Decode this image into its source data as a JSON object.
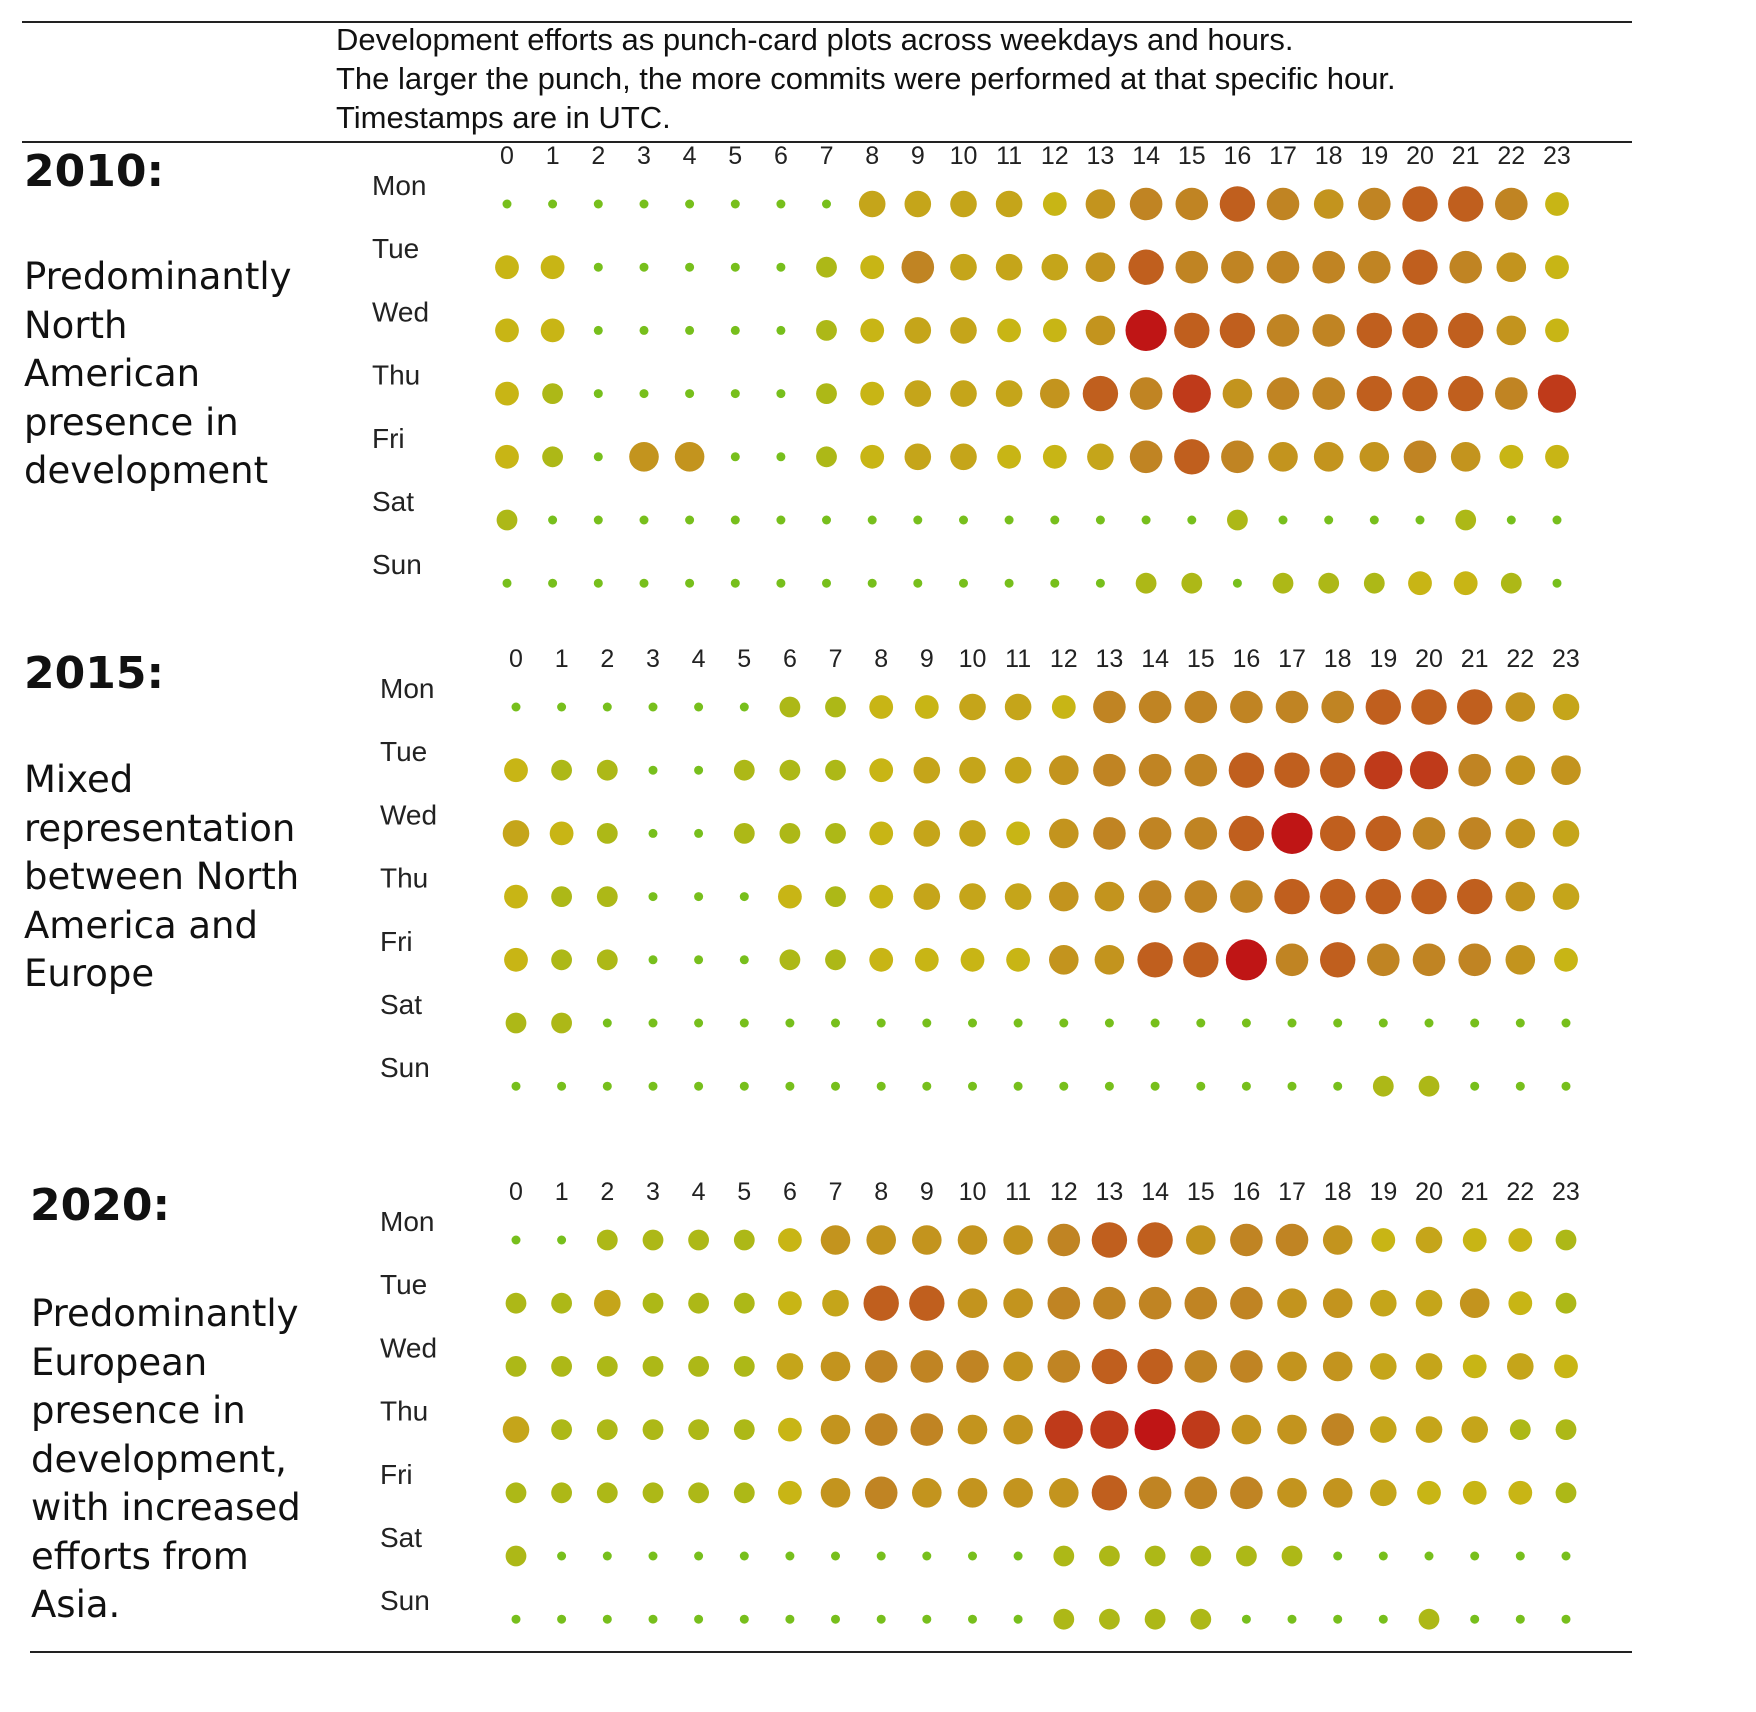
{
  "caption": {
    "lines": [
      "Development efforts as punch-card plots across weekdays and hours.",
      "The larger the punch, the more commits were performed at that specific hour.",
      "Timestamps are in UTC."
    ]
  },
  "palette": {
    "low": "#5cc21e",
    "mid": "#c8b515",
    "high": "#c08423",
    "top": "#bf1515"
  },
  "chart_data": [
    {
      "type": "punchcard",
      "title": "2010:",
      "description": [
        "Predominantly",
        "North",
        "American",
        "presence in",
        "development"
      ],
      "x": [
        "0",
        "1",
        "2",
        "3",
        "4",
        "5",
        "6",
        "7",
        "8",
        "9",
        "10",
        "11",
        "12",
        "13",
        "14",
        "15",
        "16",
        "17",
        "18",
        "19",
        "20",
        "21",
        "22",
        "23"
      ],
      "y": [
        "Mon",
        "Tue",
        "Wed",
        "Thu",
        "Fri",
        "Sat",
        "Sun"
      ],
      "scale": "relative commit intensity 0-10 (punch size and color)",
      "values": [
        [
          1,
          1,
          1,
          1,
          1,
          1,
          1,
          1,
          5,
          5,
          5,
          5,
          4,
          6,
          7,
          7,
          8,
          7,
          6,
          7,
          8,
          8,
          7,
          4
        ],
        [
          4,
          4,
          1,
          1,
          1,
          1,
          1,
          3,
          4,
          7,
          5,
          5,
          5,
          6,
          8,
          7,
          7,
          7,
          7,
          7,
          8,
          7,
          6,
          4
        ],
        [
          4,
          4,
          1,
          1,
          1,
          1,
          1,
          3,
          4,
          5,
          5,
          4,
          4,
          6,
          10,
          8,
          8,
          7,
          7,
          8,
          8,
          8,
          6,
          4
        ],
        [
          4,
          3,
          1,
          1,
          1,
          1,
          1,
          3,
          4,
          5,
          5,
          5,
          6,
          8,
          7,
          9,
          6,
          7,
          7,
          8,
          8,
          8,
          7,
          9
        ],
        [
          4,
          3,
          1,
          6,
          6,
          1,
          1,
          3,
          4,
          5,
          5,
          4,
          4,
          5,
          7,
          8,
          7,
          6,
          6,
          6,
          7,
          6,
          4,
          4
        ],
        [
          3,
          1,
          1,
          1,
          1,
          1,
          1,
          1,
          1,
          1,
          1,
          1,
          1,
          1,
          1,
          1,
          3,
          1,
          1,
          1,
          1,
          3,
          1,
          1
        ],
        [
          1,
          1,
          1,
          1,
          1,
          1,
          1,
          1,
          1,
          1,
          1,
          1,
          1,
          1,
          3,
          3,
          1,
          3,
          3,
          3,
          4,
          4,
          3,
          1
        ]
      ]
    },
    {
      "type": "punchcard",
      "title": "2015:",
      "description": [
        "Mixed",
        "representation",
        "between North",
        "America and",
        "Europe"
      ],
      "x": [
        "0",
        "1",
        "2",
        "3",
        "4",
        "5",
        "6",
        "7",
        "8",
        "9",
        "10",
        "11",
        "12",
        "13",
        "14",
        "15",
        "16",
        "17",
        "18",
        "19",
        "20",
        "21",
        "22",
        "23"
      ],
      "y": [
        "Mon",
        "Tue",
        "Wed",
        "Thu",
        "Fri",
        "Sat",
        "Sun"
      ],
      "scale": "relative commit intensity 0-10 (punch size and color)",
      "values": [
        [
          1,
          1,
          1,
          1,
          1,
          1,
          3,
          3,
          4,
          4,
          5,
          5,
          4,
          7,
          7,
          7,
          7,
          7,
          7,
          8,
          8,
          8,
          6,
          5
        ],
        [
          4,
          3,
          3,
          1,
          1,
          3,
          3,
          3,
          4,
          5,
          5,
          5,
          6,
          7,
          7,
          7,
          8,
          8,
          8,
          9,
          9,
          7,
          6,
          6
        ],
        [
          5,
          4,
          3,
          1,
          1,
          3,
          3,
          3,
          4,
          5,
          5,
          4,
          6,
          7,
          7,
          7,
          8,
          10,
          8,
          8,
          7,
          7,
          6,
          5
        ],
        [
          4,
          3,
          3,
          1,
          1,
          1,
          4,
          3,
          4,
          5,
          5,
          5,
          6,
          6,
          7,
          7,
          7,
          8,
          8,
          8,
          8,
          8,
          6,
          5
        ],
        [
          4,
          3,
          3,
          1,
          1,
          1,
          3,
          3,
          4,
          4,
          4,
          4,
          6,
          6,
          8,
          8,
          10,
          7,
          8,
          7,
          7,
          7,
          6,
          4
        ],
        [
          3,
          3,
          1,
          1,
          1,
          1,
          1,
          1,
          1,
          1,
          1,
          1,
          1,
          1,
          1,
          1,
          1,
          1,
          1,
          1,
          1,
          1,
          1,
          1
        ],
        [
          1,
          1,
          1,
          1,
          1,
          1,
          1,
          1,
          1,
          1,
          1,
          1,
          1,
          1,
          1,
          1,
          1,
          1,
          1,
          3,
          3,
          1,
          1,
          1
        ]
      ]
    },
    {
      "type": "punchcard",
      "title": "2020:",
      "description": [
        "Predominantly",
        "European",
        "presence in",
        "development,",
        "with increased",
        "efforts from",
        "Asia."
      ],
      "x": [
        "0",
        "1",
        "2",
        "3",
        "4",
        "5",
        "6",
        "7",
        "8",
        "9",
        "10",
        "11",
        "12",
        "13",
        "14",
        "15",
        "16",
        "17",
        "18",
        "19",
        "20",
        "21",
        "22",
        "23"
      ],
      "y": [
        "Mon",
        "Tue",
        "Wed",
        "Thu",
        "Fri",
        "Sat",
        "Sun"
      ],
      "scale": "relative commit intensity 0-10 (punch size and color)",
      "values": [
        [
          1,
          1,
          3,
          3,
          3,
          3,
          4,
          6,
          6,
          6,
          6,
          6,
          7,
          8,
          8,
          6,
          7,
          7,
          6,
          4,
          5,
          4,
          4,
          3
        ],
        [
          3,
          3,
          5,
          3,
          3,
          3,
          4,
          5,
          8,
          8,
          6,
          6,
          7,
          7,
          7,
          7,
          7,
          6,
          6,
          5,
          5,
          6,
          4,
          3
        ],
        [
          3,
          3,
          3,
          3,
          3,
          3,
          5,
          6,
          7,
          7,
          7,
          6,
          7,
          8,
          8,
          7,
          7,
          6,
          6,
          5,
          5,
          4,
          5,
          4
        ],
        [
          5,
          3,
          3,
          3,
          3,
          3,
          4,
          6,
          7,
          7,
          6,
          6,
          9,
          9,
          10,
          9,
          6,
          6,
          7,
          5,
          5,
          5,
          3,
          3
        ],
        [
          3,
          3,
          3,
          3,
          3,
          3,
          4,
          6,
          7,
          6,
          6,
          6,
          6,
          8,
          7,
          7,
          7,
          6,
          6,
          5,
          4,
          4,
          4,
          3
        ],
        [
          3,
          1,
          1,
          1,
          1,
          1,
          1,
          1,
          1,
          1,
          1,
          1,
          3,
          3,
          3,
          3,
          3,
          3,
          1,
          1,
          1,
          1,
          1,
          1
        ],
        [
          1,
          1,
          1,
          1,
          1,
          1,
          1,
          1,
          1,
          1,
          1,
          1,
          3,
          3,
          3,
          3,
          1,
          1,
          1,
          1,
          3,
          1,
          1,
          1
        ]
      ]
    }
  ]
}
